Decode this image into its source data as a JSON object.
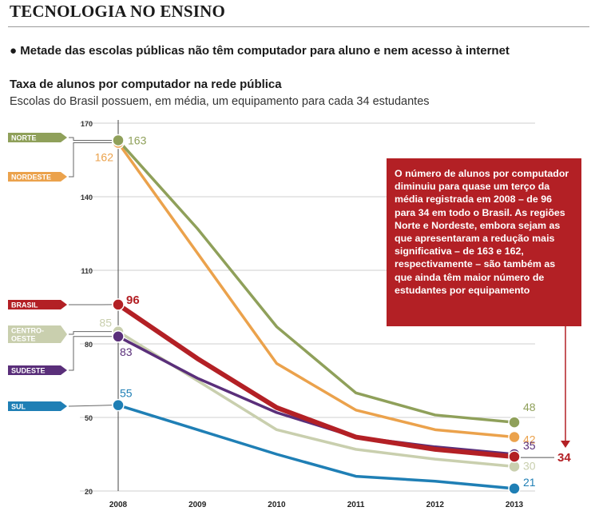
{
  "section_title": "TECNOLOGIA NO ENSINO",
  "headline": "● Metade das escolas públicas não têm computador para aluno e nem acesso à internet",
  "chart_title": "Taxa de alunos por computador na rede pública",
  "chart_subtitle": "Escolas do Brasil possuem, em média, um equipamento para cada 34 estudantes",
  "callout_text": "O número de alunos por computador diminuiu para quase um terço da média registrada em 2008 – de 96 para 34 em todo o Brasil. As regiões Norte e Nordeste, embora sejam as que apresentaram a redução mais significativa – de 163 e 162, respectivamente – são também as que ainda têm maior número de estudantes por equipamento",
  "chart_data": {
    "type": "line",
    "x": [
      2008,
      2009,
      2010,
      2011,
      2012,
      2013
    ],
    "yticks": [
      20,
      50,
      80,
      110,
      140,
      170
    ],
    "ylim": [
      20,
      170
    ],
    "grid": true,
    "series": [
      {
        "name": "NORTE",
        "label": "NORTE",
        "color": "#8fa05a",
        "values": [
          163,
          127,
          87,
          60,
          51,
          48
        ],
        "start_label": "163",
        "end_label": "48"
      },
      {
        "name": "NORDESTE",
        "label": "NORDESTE",
        "color": "#eba24c",
        "values": [
          162,
          117,
          72,
          53,
          45,
          42
        ],
        "start_label": "162",
        "end_label": "42"
      },
      {
        "name": "CENTRO-OESTE",
        "label": "CENTRO-\nOESTE",
        "color": "#c9cfae",
        "values": [
          85,
          65,
          45,
          37,
          33,
          30
        ],
        "start_label": "85",
        "end_label": "30"
      },
      {
        "name": "SUDESTE",
        "label": "SUDESTE",
        "color": "#5a2f7a",
        "values": [
          83,
          66,
          52,
          42,
          38,
          35
        ],
        "start_label": "83",
        "end_label": "35"
      },
      {
        "name": "BRASIL",
        "label": "BRASIL",
        "color": "#b32025",
        "values": [
          96,
          74,
          54,
          42,
          37,
          34
        ],
        "start_label": "96",
        "end_label": "34"
      },
      {
        "name": "SUL",
        "label": "SUL",
        "color": "#1f7fb5",
        "values": [
          55,
          45,
          35,
          26,
          24,
          21
        ],
        "start_label": "55",
        "end_label": "21"
      }
    ]
  }
}
